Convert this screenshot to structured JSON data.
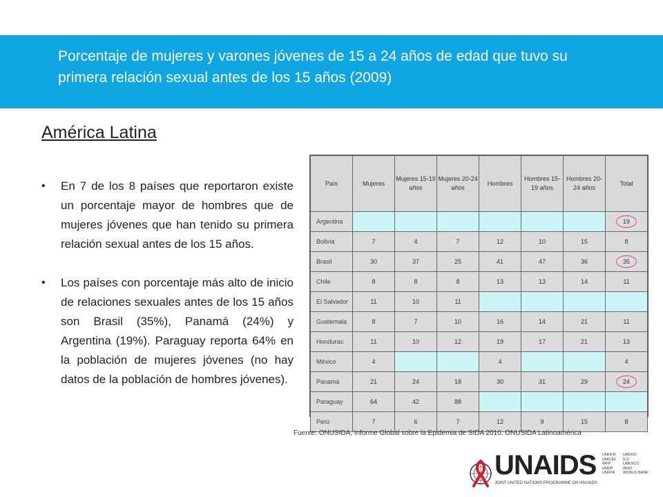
{
  "header": {
    "title": "Porcentaje de mujeres y varones jóvenes de 15 a 24 años de edad que tuvo su primera relación sexual antes de los 15 años (2009)"
  },
  "section": {
    "heading": "América Latina"
  },
  "bullets": [
    "En 7 de los 8 países que reportaron existe un porcentaje mayor de hombres que de mujeres jóvenes que han tenido su primera relación sexual antes de los 15 años.",
    "Los países con porcentaje más alto de inicio de relaciones sexuales antes de los 15 años son Brasil (35%), Panamá (24%) y Argentina (19%). Paraguay reporta 64% en la población de mujeres jóvenes (no hay datos de la población de hombres jóvenes)."
  ],
  "table": {
    "headers": [
      "País",
      "Mujeres",
      "Mujeres 15-19 años",
      "Mujeres 20-24 años",
      "Hombres",
      "Hombres 15-19 años",
      "Hombres 20-24 años",
      "Total"
    ],
    "rows": [
      [
        "Argentina",
        "",
        "",
        "",
        "",
        "",
        "",
        "19"
      ],
      [
        "Bolivia",
        "7",
        "4",
        "7",
        "12",
        "10",
        "15",
        "8"
      ],
      [
        "Brasil",
        "30",
        "37",
        "25",
        "41",
        "47",
        "36",
        "35"
      ],
      [
        "Chile",
        "8",
        "8",
        "8",
        "13",
        "13",
        "14",
        "11"
      ],
      [
        "El Salvador",
        "11",
        "10",
        "11",
        "",
        "",
        "",
        ""
      ],
      [
        "Guatemala",
        "8",
        "7",
        "10",
        "16",
        "14",
        "21",
        "11"
      ],
      [
        "Honduras",
        "11",
        "10",
        "12",
        "19",
        "17",
        "21",
        "13"
      ],
      [
        "México",
        "4",
        "",
        "",
        "4",
        "",
        "",
        "4"
      ],
      [
        "Panamá",
        "21",
        "24",
        "18",
        "30",
        "31",
        "29",
        "24"
      ],
      [
        "Paraguay",
        "64",
        "42",
        "88",
        "",
        "",
        "",
        ""
      ],
      [
        "Perú",
        "7",
        "6",
        "7",
        "12",
        "9",
        "15",
        "8"
      ]
    ],
    "highlighted_rows": [
      "Argentina",
      "Brasil",
      "Panamá"
    ],
    "highlight_color": "#e0409a",
    "empty_cell_color": "#ccf5f7"
  },
  "source": "Fuente: ONUSIDA, Informe Global sobre la Epidemia de SIDA 2010. ONUSIDA Latinoamérica",
  "logo": {
    "name": "UNAIDS",
    "tagline": "JOINT UNITED NATIONS PROGRAMME ON HIV/AIDS",
    "partners_col1": [
      "UNHCR",
      "UNICEF",
      "WFP",
      "UNDP",
      "UNFPA"
    ],
    "partners_col2": [
      "UNODC",
      "ILO",
      "UNESCO",
      "WHO",
      "WORLD BANK"
    ]
  },
  "colors": {
    "header_bg": "#0ea5e0",
    "ribbon": "#d0202e"
  }
}
